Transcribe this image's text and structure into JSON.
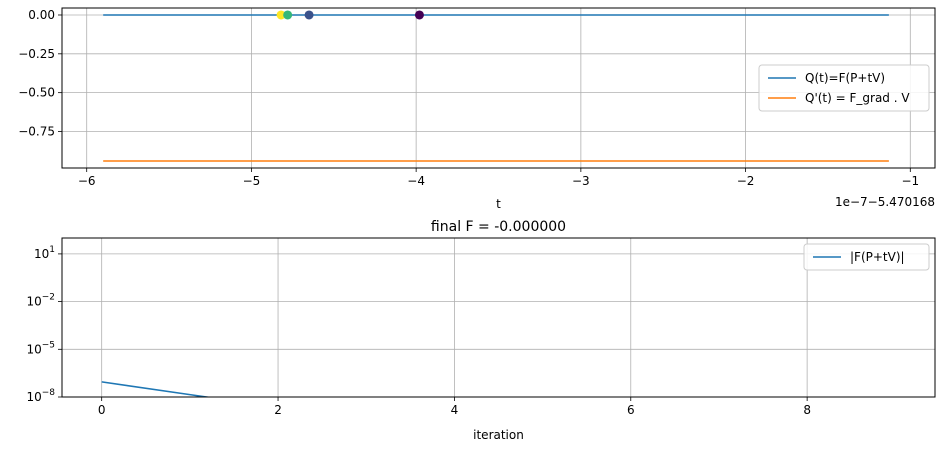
{
  "chart_data": [
    {
      "type": "line",
      "title": "",
      "xlabel": "t",
      "ylabel": "",
      "x_offset_text": "1e−7−5.470168",
      "xlim": [
        -6.15,
        -0.85
      ],
      "ylim": [
        -0.985,
        0.045
      ],
      "xticks": [
        -6,
        -5,
        -4,
        -3,
        -2,
        -1
      ],
      "xtick_labels": [
        "−6",
        "−5",
        "−4",
        "−3",
        "−2",
        "−1"
      ],
      "yticks": [
        0.0,
        -0.25,
        -0.5,
        -0.75
      ],
      "ytick_labels": [
        "0.00",
        "−0.25",
        "−0.50",
        "−0.75"
      ],
      "grid": true,
      "legend_position": "center-right",
      "series": [
        {
          "name": "Q(t)=F(P+tV)",
          "color": "#1f77b4",
          "x": [
            -5.9,
            -1.13
          ],
          "y": [
            0.0,
            0.0
          ]
        },
        {
          "name": "Q'(t) = F_grad . V",
          "color": "#ff7f0e",
          "x": [
            -5.9,
            -1.13
          ],
          "y": [
            -0.94,
            -0.94
          ]
        }
      ],
      "scatter": {
        "x": [
          -4.82,
          -4.78,
          -4.65,
          -3.98
        ],
        "y": [
          0.0,
          0.0,
          0.0,
          0.0
        ],
        "colors": [
          "#fde725",
          "#35b779",
          "#3b528b",
          "#440154"
        ]
      }
    },
    {
      "type": "line",
      "title": "final F = -0.000000",
      "xlabel": "iteration",
      "ylabel": "",
      "xlim": [
        -0.45,
        9.45
      ],
      "ylim_log10": [
        -8,
        2.0
      ],
      "yscale": "log",
      "xticks": [
        0,
        2,
        4,
        6,
        8
      ],
      "xtick_labels": [
        "0",
        "2",
        "4",
        "6",
        "8"
      ],
      "yticks_log10": [
        1,
        -2,
        -5,
        -8
      ],
      "ytick_bases": [
        "10",
        "10",
        "10",
        "10"
      ],
      "ytick_exponents": [
        "1",
        "−2",
        "−5",
        "−8"
      ],
      "grid": true,
      "legend_position": "top-right",
      "series": [
        {
          "name": "|F(P+tV)|",
          "color": "#1f77b4",
          "x": [
            0,
            1,
            2
          ],
          "y_log10": [
            -7.05,
            -7.85,
            -8.65
          ]
        }
      ]
    }
  ]
}
